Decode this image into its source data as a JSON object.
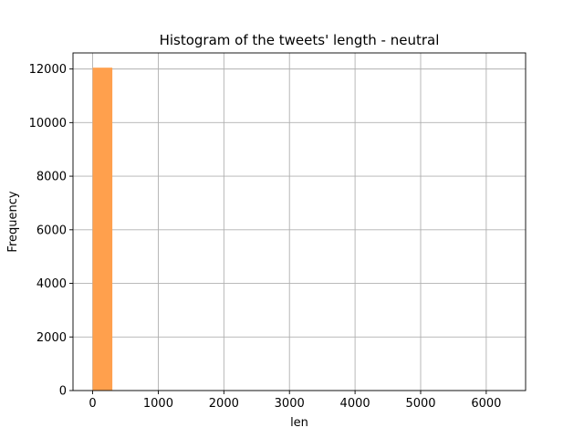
{
  "chart_data": {
    "type": "bar",
    "title": "Histogram of the tweets' length - neutral",
    "xlabel": "len",
    "ylabel": "Frequency",
    "xlim": [
      -300,
      6600
    ],
    "ylim": [
      0,
      12600
    ],
    "xticks": [
      0,
      1000,
      2000,
      3000,
      4000,
      5000,
      6000
    ],
    "yticks": [
      0,
      2000,
      4000,
      6000,
      8000,
      10000,
      12000
    ],
    "grid": true,
    "bar_color": "#ffa04d",
    "bins": [
      {
        "start": 0,
        "end": 300,
        "value": 12050
      }
    ]
  }
}
